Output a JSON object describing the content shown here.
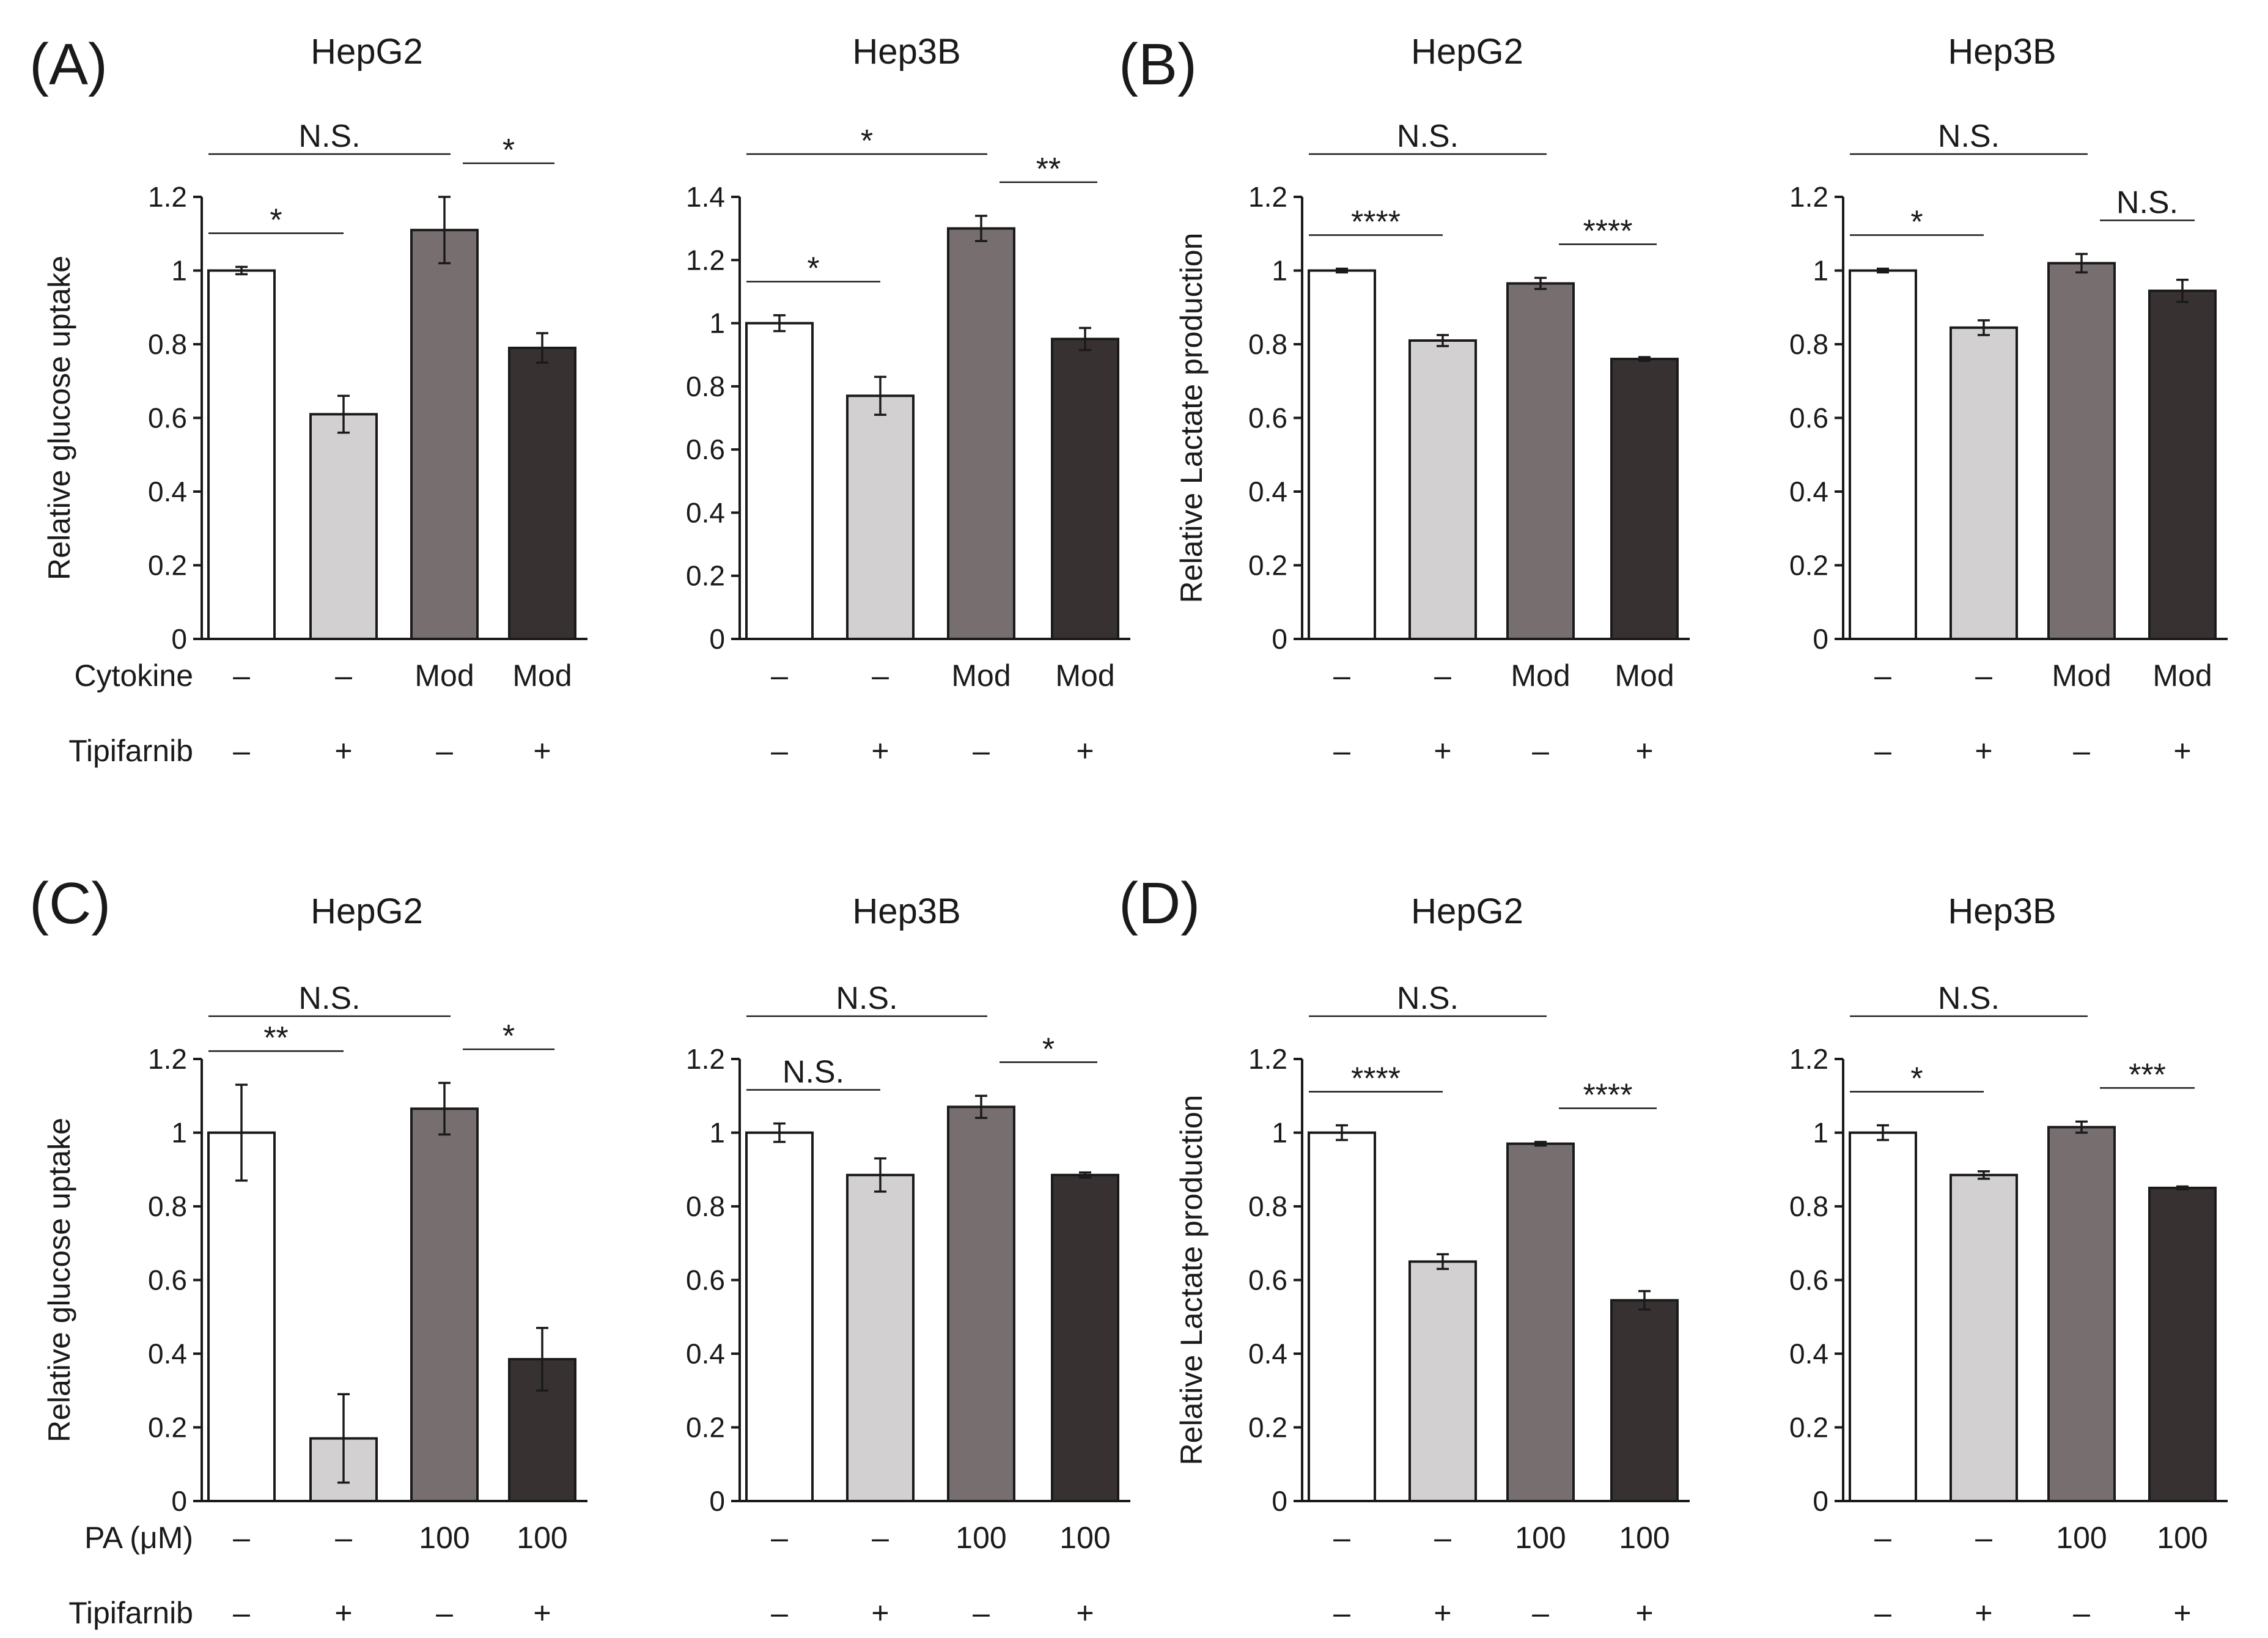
{
  "panel_letters": [
    "(A)",
    "(B)",
    "(C)",
    "(D)"
  ],
  "bar_colors": [
    "#ffffff",
    "#d3d0d1",
    "#776f6f",
    "#373231"
  ],
  "row_labels": {
    "top": {
      "factor": "Cytokine",
      "drug": "Tipifarnib"
    },
    "bottom": {
      "factor": "PA (μM)",
      "drug": "Tipifarnib"
    }
  },
  "chart_data": [
    {
      "type": "bar",
      "panel": "(A)",
      "title": "HepG2",
      "ylabel": "Relative glucose uptake",
      "categories": [
        "1",
        "2",
        "3",
        "4"
      ],
      "values": [
        1.0,
        0.61,
        1.11,
        0.79
      ],
      "errors": [
        0.01,
        0.05,
        0.09,
        0.04
      ],
      "ylim": [
        0,
        1.2
      ],
      "yticks": [
        "0",
        "0.2",
        "0.4",
        "0.6",
        "0.8",
        "1",
        "1.2"
      ],
      "factor_row": [
        "–",
        "–",
        "Mod",
        "Mod"
      ],
      "drug_row": [
        "–",
        "+",
        "–",
        "+"
      ],
      "significance": [
        {
          "from": 0,
          "to": 1,
          "label": "*"
        },
        {
          "from": 0,
          "to": 2,
          "label": "N.S."
        },
        {
          "from": 2,
          "to": 3,
          "label": "*"
        }
      ]
    },
    {
      "type": "bar",
      "panel": "",
      "title": "Hep3B",
      "ylabel": "",
      "categories": [
        "1",
        "2",
        "3",
        "4"
      ],
      "values": [
        1.0,
        0.77,
        1.3,
        0.95
      ],
      "errors": [
        0.025,
        0.06,
        0.04,
        0.035
      ],
      "ylim": [
        0,
        1.4
      ],
      "yticks": [
        "0",
        "0.2",
        "0.4",
        "0.6",
        "0.8",
        "1",
        "1.2",
        "1.4"
      ],
      "factor_row": [
        "–",
        "–",
        "Mod",
        "Mod"
      ],
      "drug_row": [
        "–",
        "+",
        "–",
        "+"
      ],
      "significance": [
        {
          "from": 0,
          "to": 1,
          "label": "*"
        },
        {
          "from": 0,
          "to": 2,
          "label": "*"
        },
        {
          "from": 2,
          "to": 3,
          "label": "**"
        }
      ]
    },
    {
      "type": "bar",
      "panel": "(B)",
      "title": "HepG2",
      "ylabel": "Relative Lactate production",
      "categories": [
        "1",
        "2",
        "3",
        "4"
      ],
      "values": [
        1.0,
        0.81,
        0.965,
        0.76
      ],
      "errors": [
        0.005,
        0.015,
        0.015,
        0.005
      ],
      "ylim": [
        0,
        1.2
      ],
      "yticks": [
        "0",
        "0.2",
        "0.4",
        "0.6",
        "0.8",
        "1",
        "1.2"
      ],
      "factor_row": [
        "–",
        "–",
        "Mod",
        "Mod"
      ],
      "drug_row": [
        "–",
        "+",
        "–",
        "+"
      ],
      "significance": [
        {
          "from": 0,
          "to": 1,
          "label": "****"
        },
        {
          "from": 0,
          "to": 2,
          "label": "N.S."
        },
        {
          "from": 2,
          "to": 3,
          "label": "****"
        }
      ]
    },
    {
      "type": "bar",
      "panel": "",
      "title": "Hep3B",
      "ylabel": "",
      "categories": [
        "1",
        "2",
        "3",
        "4"
      ],
      "values": [
        1.0,
        0.845,
        1.02,
        0.945
      ],
      "errors": [
        0.005,
        0.02,
        0.025,
        0.03
      ],
      "ylim": [
        0,
        1.2
      ],
      "yticks": [
        "0",
        "0.2",
        "0.4",
        "0.6",
        "0.8",
        "1",
        "1.2"
      ],
      "factor_row": [
        "–",
        "–",
        "Mod",
        "Mod"
      ],
      "drug_row": [
        "–",
        "+",
        "–",
        "+"
      ],
      "significance": [
        {
          "from": 0,
          "to": 1,
          "label": "*"
        },
        {
          "from": 0,
          "to": 2,
          "label": "N.S."
        },
        {
          "from": 2,
          "to": 3,
          "label": "N.S."
        }
      ]
    },
    {
      "type": "bar",
      "panel": "(C)",
      "title": "HepG2",
      "ylabel": "Relative glucose uptake",
      "categories": [
        "1",
        "2",
        "3",
        "4"
      ],
      "values": [
        1.0,
        0.17,
        1.065,
        0.385
      ],
      "errors": [
        0.13,
        0.12,
        0.07,
        0.085
      ],
      "ylim": [
        0,
        1.2
      ],
      "yticks": [
        "0",
        "0.2",
        "0.4",
        "0.6",
        "0.8",
        "1",
        "1.2"
      ],
      "factor_row": [
        "–",
        "–",
        "100",
        "100"
      ],
      "drug_row": [
        "–",
        "+",
        "–",
        "+"
      ],
      "significance": [
        {
          "from": 0,
          "to": 1,
          "label": "**"
        },
        {
          "from": 0,
          "to": 2,
          "label": "N.S."
        },
        {
          "from": 2,
          "to": 3,
          "label": "*"
        }
      ]
    },
    {
      "type": "bar",
      "panel": "",
      "title": "Hep3B",
      "ylabel": "",
      "categories": [
        "1",
        "2",
        "3",
        "4"
      ],
      "values": [
        1.0,
        0.885,
        1.07,
        0.885
      ],
      "errors": [
        0.025,
        0.045,
        0.03,
        0.007
      ],
      "ylim": [
        0,
        1.2
      ],
      "yticks": [
        "0",
        "0.2",
        "0.4",
        "0.6",
        "0.8",
        "1",
        "1.2"
      ],
      "factor_row": [
        "–",
        "–",
        "100",
        "100"
      ],
      "drug_row": [
        "–",
        "+",
        "–",
        "+"
      ],
      "significance": [
        {
          "from": 0,
          "to": 1,
          "label": "N.S."
        },
        {
          "from": 0,
          "to": 2,
          "label": "N.S."
        },
        {
          "from": 2,
          "to": 3,
          "label": "*"
        }
      ]
    },
    {
      "type": "bar",
      "panel": "(D)",
      "title": "HepG2",
      "ylabel": "Relative Lactate production",
      "categories": [
        "1",
        "2",
        "3",
        "4"
      ],
      "values": [
        1.0,
        0.65,
        0.97,
        0.545
      ],
      "errors": [
        0.02,
        0.02,
        0.005,
        0.025
      ],
      "ylim": [
        0,
        1.2
      ],
      "yticks": [
        "0",
        "0.2",
        "0.4",
        "0.6",
        "0.8",
        "1",
        "1.2"
      ],
      "factor_row": [
        "–",
        "–",
        "100",
        "100"
      ],
      "drug_row": [
        "–",
        "+",
        "–",
        "+"
      ],
      "significance": [
        {
          "from": 0,
          "to": 1,
          "label": "****"
        },
        {
          "from": 0,
          "to": 2,
          "label": "N.S."
        },
        {
          "from": 2,
          "to": 3,
          "label": "****"
        }
      ]
    },
    {
      "type": "bar",
      "panel": "",
      "title": "Hep3B",
      "ylabel": "",
      "categories": [
        "1",
        "2",
        "3",
        "4"
      ],
      "values": [
        1.0,
        0.885,
        1.015,
        0.85
      ],
      "errors": [
        0.02,
        0.01,
        0.015,
        0.004
      ],
      "ylim": [
        0,
        1.2
      ],
      "yticks": [
        "0",
        "0.2",
        "0.4",
        "0.6",
        "0.8",
        "1",
        "1.2"
      ],
      "factor_row": [
        "–",
        "–",
        "100",
        "100"
      ],
      "drug_row": [
        "–",
        "+",
        "–",
        "+"
      ],
      "significance": [
        {
          "from": 0,
          "to": 1,
          "label": "*"
        },
        {
          "from": 0,
          "to": 2,
          "label": "N.S."
        },
        {
          "from": 2,
          "to": 3,
          "label": "***"
        }
      ]
    }
  ]
}
